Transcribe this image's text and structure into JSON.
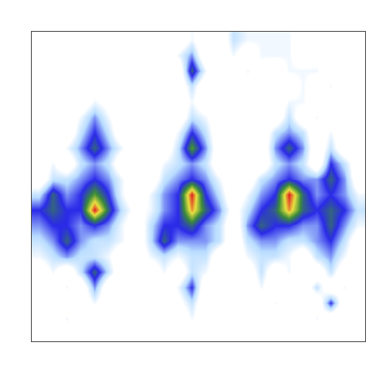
{
  "chart_data": {
    "type": "heatmap",
    "xlim": [
      -0.5,
      23.5
    ],
    "ylim": [
      -0.5,
      19.5
    ],
    "zlim": [
      0,
      10
    ],
    "tick_labels": false,
    "grid": false,
    "colors": [
      "#ffffff",
      "#ffffff",
      "#b8dcff",
      "#2a2ae8",
      "#3a8a3a",
      "#e8e040",
      "#e02020"
    ],
    "cells": [
      [
        0,
        0,
        1,
        0,
        0,
        0,
        0,
        0,
        0,
        0,
        0,
        1,
        0,
        0,
        0,
        0,
        0,
        0,
        0,
        0,
        0,
        0,
        0,
        0
      ],
      [
        0,
        0,
        2,
        0,
        0,
        1,
        0,
        0,
        0,
        0,
        0,
        2,
        0,
        0,
        0,
        0,
        0,
        0,
        0,
        0,
        2,
        0,
        0,
        0
      ],
      [
        0,
        1,
        0,
        0,
        2,
        0,
        0,
        0,
        0,
        0,
        1,
        3,
        0,
        0,
        0,
        0,
        0,
        2,
        0,
        0,
        0,
        5,
        0,
        0
      ],
      [
        0,
        0,
        2,
        0,
        4,
        0,
        0,
        0,
        0,
        0,
        2,
        5,
        0,
        0,
        0,
        0,
        2,
        0,
        0,
        0,
        3,
        0,
        2,
        0
      ],
      [
        0,
        2,
        0,
        3,
        6,
        3,
        0,
        0,
        0,
        2,
        0,
        3,
        2,
        0,
        0,
        0,
        3,
        0,
        2,
        0,
        0,
        3,
        0,
        0
      ],
      [
        2,
        3,
        4,
        3,
        3,
        2,
        0,
        0,
        2,
        3,
        2,
        3,
        3,
        0,
        0,
        2,
        3,
        3,
        2,
        0,
        3,
        4,
        2,
        0
      ],
      [
        3,
        4,
        6,
        4,
        3,
        3,
        2,
        0,
        3,
        6,
        4,
        4,
        4,
        3,
        0,
        3,
        4,
        4,
        3,
        3,
        4,
        5,
        3,
        0
      ],
      [
        4,
        5,
        5,
        4,
        5,
        4,
        2,
        0,
        3,
        5,
        5,
        6,
        4,
        3,
        0,
        4,
        6,
        5,
        5,
        4,
        4,
        6,
        4,
        2
      ],
      [
        5,
        6,
        5,
        5,
        10,
        6,
        3,
        1,
        2,
        4,
        5,
        9,
        6,
        4,
        1,
        3,
        5,
        6,
        9,
        6,
        5,
        6,
        5,
        3
      ],
      [
        3,
        6,
        4,
        5,
        7,
        5,
        2,
        0,
        2,
        4,
        5,
        10,
        5,
        3,
        0,
        2,
        4,
        5,
        10,
        6,
        4,
        5,
        4,
        2
      ],
      [
        0,
        3,
        3,
        4,
        5,
        4,
        2,
        0,
        0,
        3,
        4,
        5,
        4,
        2,
        0,
        0,
        3,
        4,
        5,
        4,
        4,
        6,
        4,
        0
      ],
      [
        0,
        2,
        0,
        3,
        4,
        3,
        0,
        0,
        0,
        2,
        3,
        4,
        3,
        0,
        0,
        0,
        0,
        3,
        4,
        3,
        0,
        5,
        3,
        0
      ],
      [
        0,
        0,
        2,
        4,
        6,
        4,
        2,
        0,
        0,
        0,
        3,
        7,
        4,
        0,
        0,
        0,
        0,
        4,
        6,
        4,
        0,
        3,
        0,
        0
      ],
      [
        0,
        0,
        0,
        3,
        5,
        3,
        0,
        0,
        0,
        0,
        2,
        5,
        3,
        0,
        0,
        0,
        0,
        3,
        4,
        3,
        0,
        2,
        0,
        0
      ],
      [
        0,
        0,
        0,
        2,
        4,
        2,
        0,
        0,
        0,
        0,
        0,
        3,
        2,
        0,
        0,
        0,
        0,
        0,
        3,
        0,
        2,
        0,
        0,
        0
      ],
      [
        0,
        0,
        0,
        0,
        2,
        1,
        0,
        0,
        0,
        0,
        0,
        2,
        0,
        0,
        1,
        0,
        0,
        0,
        2,
        2,
        0,
        0,
        0,
        0
      ],
      [
        0,
        0,
        0,
        0,
        1,
        0,
        0,
        0,
        0,
        0,
        0,
        3,
        0,
        0,
        0,
        1,
        0,
        0,
        0,
        2,
        0,
        2,
        0,
        0
      ],
      [
        0,
        0,
        0,
        0,
        0,
        0,
        0,
        0,
        0,
        0,
        0,
        6,
        2,
        0,
        0,
        2,
        1,
        0,
        2,
        2,
        2,
        0,
        0,
        0
      ],
      [
        0,
        0,
        0,
        0,
        1,
        0,
        0,
        0,
        0,
        0,
        2,
        4,
        0,
        0,
        2,
        0,
        2,
        2,
        2,
        0,
        1,
        0,
        0,
        0
      ],
      [
        0,
        0,
        0,
        0,
        0,
        0,
        0,
        0,
        0,
        0,
        0,
        2,
        0,
        0,
        3,
        2,
        2,
        2,
        2,
        0,
        0,
        1,
        0,
        0
      ]
    ]
  }
}
